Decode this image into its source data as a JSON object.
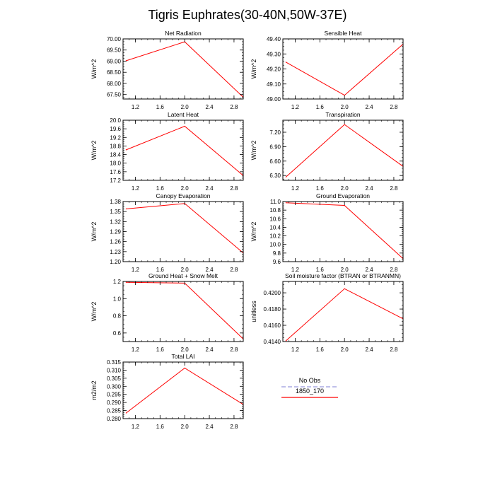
{
  "figure": {
    "title": "Tigris Euphrates(30-40N,50W-37E)"
  },
  "legend": {
    "entries": [
      {
        "label": "No Obs",
        "color": "#9999dd",
        "dash": true
      },
      {
        "label": "1850_170",
        "color": "#ff0000",
        "dash": false
      }
    ]
  },
  "chart_data": [
    {
      "type": "line",
      "title": "Net Radiation",
      "ylabel": "W/m^2",
      "xlim": [
        1.0,
        2.95
      ],
      "ylim": [
        67.3,
        70.0
      ],
      "xticks": [
        1.2,
        1.6,
        2.0,
        2.4,
        2.8
      ],
      "xticklabels": [
        "1.2",
        "1.6",
        "2.0",
        "2.4",
        "2.8"
      ],
      "yticks": [
        67.5,
        68.0,
        68.5,
        69.0,
        69.5,
        70.0
      ],
      "yticklabels": [
        "67.50",
        "68.00",
        "68.50",
        "69.00",
        "69.50",
        "70.00"
      ],
      "series": [
        {
          "name": "1850_170",
          "color": "#ff0000",
          "x": [
            1.05,
            2.0,
            2.95
          ],
          "y": [
            69.02,
            69.87,
            67.38
          ]
        }
      ]
    },
    {
      "type": "line",
      "title": "Sensible Heat",
      "ylabel": "W/m^2",
      "xlim": [
        1.0,
        2.95
      ],
      "ylim": [
        49.0,
        49.4
      ],
      "xticks": [
        1.2,
        1.6,
        2.0,
        2.4,
        2.8
      ],
      "xticklabels": [
        "1.2",
        "1.6",
        "2.0",
        "2.4",
        "2.8"
      ],
      "yticks": [
        49.0,
        49.1,
        49.2,
        49.3,
        49.4
      ],
      "yticklabels": [
        "49.00",
        "49.10",
        "49.20",
        "49.30",
        "49.40"
      ],
      "series": [
        {
          "name": "1850_170",
          "color": "#ff0000",
          "x": [
            1.05,
            2.0,
            2.95
          ],
          "y": [
            49.245,
            49.025,
            49.365
          ]
        }
      ]
    },
    {
      "type": "line",
      "title": "Latent Heat",
      "ylabel": "W/m^2",
      "xlim": [
        1.0,
        2.95
      ],
      "ylim": [
        17.2,
        20.0
      ],
      "xticks": [
        1.2,
        1.6,
        2.0,
        2.4,
        2.8
      ],
      "xticklabels": [
        "1.2",
        "1.6",
        "2.0",
        "2.4",
        "2.8"
      ],
      "yticks": [
        17.2,
        17.6,
        18.0,
        18.4,
        18.8,
        19.2,
        19.6,
        20.0
      ],
      "yticklabels": [
        "17.2",
        "17.6",
        "18.0",
        "18.4",
        "18.8",
        "19.2",
        "19.6",
        "20.0"
      ],
      "series": [
        {
          "name": "1850_170",
          "color": "#ff0000",
          "x": [
            1.05,
            2.0,
            2.95
          ],
          "y": [
            18.62,
            19.72,
            17.42
          ]
        }
      ]
    },
    {
      "type": "line",
      "title": "Transpiration",
      "ylabel": "W/m^2",
      "xlim": [
        1.0,
        2.95
      ],
      "ylim": [
        6.2,
        7.45
      ],
      "xticks": [
        1.2,
        1.6,
        2.0,
        2.4,
        2.8
      ],
      "xticklabels": [
        "1.2",
        "1.6",
        "2.0",
        "2.4",
        "2.8"
      ],
      "yticks": [
        6.3,
        6.6,
        6.9,
        7.2
      ],
      "yticklabels": [
        "6.30",
        "6.60",
        "6.90",
        "7.20"
      ],
      "series": [
        {
          "name": "1850_170",
          "color": "#ff0000",
          "x": [
            1.05,
            2.0,
            2.95
          ],
          "y": [
            6.27,
            7.36,
            6.49
          ]
        }
      ]
    },
    {
      "type": "line",
      "title": "Canopy Evaporation",
      "ylabel": "W/m^2",
      "xlim": [
        1.0,
        2.95
      ],
      "ylim": [
        1.2,
        1.38
      ],
      "xticks": [
        1.2,
        1.6,
        2.0,
        2.4,
        2.8
      ],
      "xticklabels": [
        "1.2",
        "1.6",
        "2.0",
        "2.4",
        "2.8"
      ],
      "yticks": [
        1.2,
        1.23,
        1.26,
        1.29,
        1.32,
        1.35,
        1.38
      ],
      "yticklabels": [
        "1.20",
        "1.23",
        "1.26",
        "1.29",
        "1.32",
        "1.35",
        "1.38"
      ],
      "series": [
        {
          "name": "1850_170",
          "color": "#ff0000",
          "x": [
            1.05,
            2.0,
            2.95
          ],
          "y": [
            1.358,
            1.374,
            1.226
          ]
        }
      ]
    },
    {
      "type": "line",
      "title": "Ground Evaporation",
      "ylabel": "W/m^2",
      "xlim": [
        1.0,
        2.95
      ],
      "ylim": [
        9.6,
        11.0
      ],
      "xticks": [
        1.2,
        1.6,
        2.0,
        2.4,
        2.8
      ],
      "xticklabels": [
        "1.2",
        "1.6",
        "2.0",
        "2.4",
        "2.8"
      ],
      "yticks": [
        9.6,
        9.8,
        10.0,
        10.2,
        10.4,
        10.6,
        10.8,
        11.0
      ],
      "yticklabels": [
        "9.6",
        "9.8",
        "10.0",
        "10.2",
        "10.4",
        "10.6",
        "10.8",
        "11.0"
      ],
      "series": [
        {
          "name": "1850_170",
          "color": "#ff0000",
          "x": [
            1.05,
            2.0,
            2.95
          ],
          "y": [
            10.97,
            10.91,
            9.67
          ]
        }
      ]
    },
    {
      "type": "line",
      "title": "Ground Heat + Snow Melt",
      "ylabel": "W/m^2",
      "xlim": [
        1.0,
        2.95
      ],
      "ylim": [
        0.5,
        1.2
      ],
      "xticks": [
        1.2,
        1.6,
        2.0,
        2.4,
        2.8
      ],
      "xticklabels": [
        "1.2",
        "1.6",
        "2.0",
        "2.4",
        "2.8"
      ],
      "yticks": [
        0.6,
        0.8,
        1.0,
        1.2
      ],
      "yticklabels": [
        "0.6",
        "0.8",
        "1.0",
        "1.2"
      ],
      "series": [
        {
          "name": "1850_170",
          "color": "#ff0000",
          "x": [
            1.05,
            2.0,
            2.95
          ],
          "y": [
            1.19,
            1.18,
            0.53
          ]
        }
      ]
    },
    {
      "type": "line",
      "title": "Soil moisture factor (BTRAN or BTRANMN)",
      "ylabel": "unitless",
      "xlim": [
        1.0,
        2.95
      ],
      "ylim": [
        0.414,
        0.4214
      ],
      "xticks": [
        1.2,
        1.6,
        2.0,
        2.4,
        2.8
      ],
      "xticklabels": [
        "1.2",
        "1.6",
        "2.0",
        "2.4",
        "2.8"
      ],
      "yticks": [
        0.414,
        0.416,
        0.418,
        0.42
      ],
      "yticklabels": [
        "0.4140",
        "0.4160",
        "0.4180",
        "0.4200"
      ],
      "series": [
        {
          "name": "1850_170",
          "color": "#ff0000",
          "x": [
            1.05,
            2.0,
            2.95
          ],
          "y": [
            0.4141,
            0.4205,
            0.4168
          ]
        }
      ]
    },
    {
      "type": "line",
      "title": "Total LAI",
      "ylabel": "m2/m2",
      "xlim": [
        1.0,
        2.95
      ],
      "ylim": [
        0.28,
        0.315
      ],
      "xticks": [
        1.2,
        1.6,
        2.0,
        2.4,
        2.8
      ],
      "xticklabels": [
        "1.2",
        "1.6",
        "2.0",
        "2.4",
        "2.8"
      ],
      "yticks": [
        0.28,
        0.285,
        0.29,
        0.295,
        0.3,
        0.305,
        0.31,
        0.315
      ],
      "yticklabels": [
        "0.280",
        "0.285",
        "0.290",
        "0.295",
        "0.300",
        "0.305",
        "0.310",
        "0.315"
      ],
      "series": [
        {
          "name": "1850_170",
          "color": "#ff0000",
          "x": [
            1.05,
            2.0,
            2.95
          ],
          "y": [
            0.2835,
            0.3113,
            0.2888
          ]
        }
      ]
    }
  ]
}
